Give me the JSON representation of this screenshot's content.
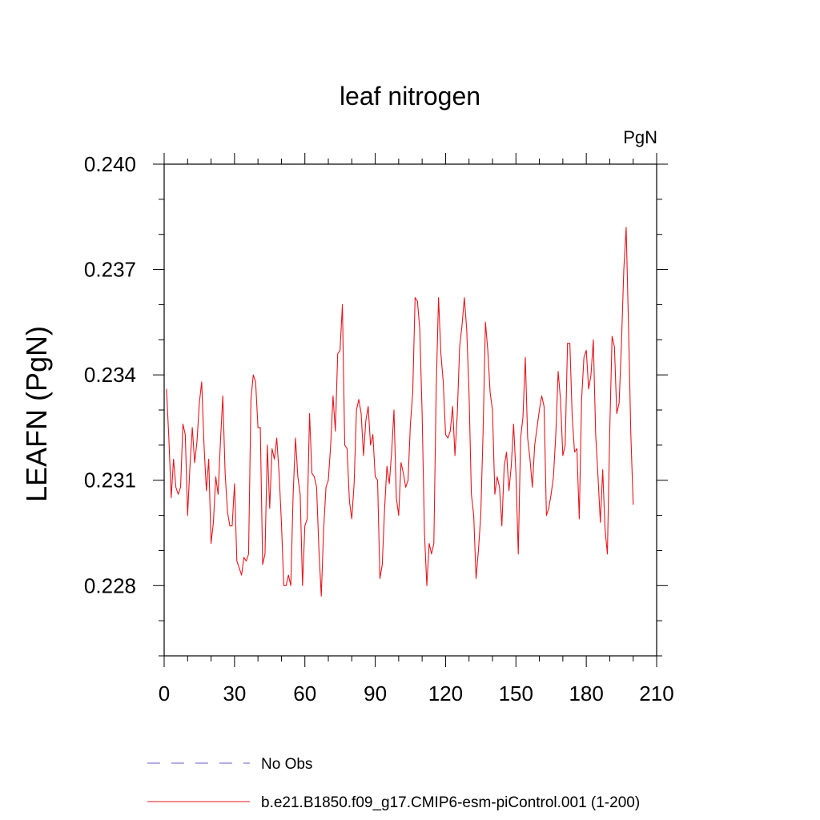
{
  "chart_data": {
    "type": "line",
    "title": "leaf nitrogen",
    "units_label": "PgN",
    "ylabel": "LEAFN  (PgN)",
    "xlabel": "",
    "xlim": [
      0,
      210
    ],
    "ylim": [
      0.226,
      0.24
    ],
    "x_ticks": [
      0,
      30,
      60,
      90,
      120,
      150,
      180,
      210
    ],
    "x_tick_labels": [
      "0",
      "30",
      "60",
      "90",
      "120",
      "150",
      "180",
      "210"
    ],
    "y_ticks": [
      0.228,
      0.231,
      0.234,
      0.237,
      0.24
    ],
    "y_tick_labels": [
      "0.228",
      "0.231",
      "0.234",
      "0.237",
      "0.240"
    ],
    "x_minor_step": 10,
    "y_minor_step": 0.001,
    "grid": false,
    "legend": [
      {
        "label": "No Obs",
        "color": "#6a5acd",
        "style": "dashed"
      },
      {
        "label": "b.e21.B1850.f09_g17.CMIP6-esm-piControl.001 (1-200)",
        "color": "#e8141c",
        "style": "solid"
      }
    ],
    "series": [
      {
        "name": "b.e21.B1850.f09_g17.CMIP6-esm-piControl.001 (1-200)",
        "color": "#e8141c",
        "x_start": 1,
        "values": [
          0.2336,
          0.2322,
          0.2305,
          0.2316,
          0.2308,
          0.2306,
          0.2308,
          0.2326,
          0.2323,
          0.23,
          0.2314,
          0.2325,
          0.2315,
          0.2321,
          0.2332,
          0.2338,
          0.232,
          0.2307,
          0.2316,
          0.2292,
          0.2298,
          0.2311,
          0.2306,
          0.2321,
          0.2334,
          0.2312,
          0.2301,
          0.2297,
          0.2297,
          0.2309,
          0.2287,
          0.2285,
          0.2283,
          0.2288,
          0.2287,
          0.2289,
          0.2333,
          0.234,
          0.2338,
          0.2325,
          0.2325,
          0.2286,
          0.2289,
          0.232,
          0.2302,
          0.2319,
          0.2316,
          0.2322,
          0.2312,
          0.2298,
          0.228,
          0.228,
          0.2283,
          0.228,
          0.2306,
          0.2322,
          0.2311,
          0.2306,
          0.228,
          0.2297,
          0.2299,
          0.2329,
          0.2312,
          0.2311,
          0.2308,
          0.229,
          0.2277,
          0.2296,
          0.2308,
          0.231,
          0.232,
          0.2334,
          0.2324,
          0.2346,
          0.2347,
          0.236,
          0.232,
          0.2319,
          0.2304,
          0.2299,
          0.2309,
          0.233,
          0.2333,
          0.2329,
          0.2317,
          0.2327,
          0.2331,
          0.232,
          0.2323,
          0.2311,
          0.231,
          0.2282,
          0.2286,
          0.2302,
          0.2314,
          0.2309,
          0.2318,
          0.233,
          0.2305,
          0.23,
          0.2315,
          0.2312,
          0.2308,
          0.231,
          0.2326,
          0.2335,
          0.2362,
          0.2361,
          0.2353,
          0.2329,
          0.2295,
          0.228,
          0.2292,
          0.2289,
          0.2292,
          0.2336,
          0.2362,
          0.2346,
          0.2338,
          0.2323,
          0.2322,
          0.2324,
          0.2331,
          0.2317,
          0.2329,
          0.2348,
          0.2354,
          0.2362,
          0.2353,
          0.2335,
          0.2306,
          0.23,
          0.2282,
          0.229,
          0.23,
          0.2324,
          0.2355,
          0.2347,
          0.2335,
          0.233,
          0.2306,
          0.2311,
          0.2308,
          0.2297,
          0.2314,
          0.2318,
          0.2307,
          0.2314,
          0.2326,
          0.2312,
          0.2289,
          0.2322,
          0.2328,
          0.2345,
          0.2322,
          0.2316,
          0.2308,
          0.232,
          0.2325,
          0.233,
          0.2334,
          0.2331,
          0.23,
          0.2302,
          0.2306,
          0.2311,
          0.2323,
          0.2341,
          0.2333,
          0.2317,
          0.232,
          0.2349,
          0.2349,
          0.2328,
          0.2318,
          0.2319,
          0.2299,
          0.2333,
          0.2345,
          0.2347,
          0.2336,
          0.234,
          0.235,
          0.2323,
          0.2311,
          0.2298,
          0.2313,
          0.2296,
          0.2289,
          0.2324,
          0.2351,
          0.2348,
          0.2329,
          0.2332,
          0.2349,
          0.237,
          0.2382,
          0.2354,
          0.2323,
          0.2303
        ]
      }
    ]
  }
}
